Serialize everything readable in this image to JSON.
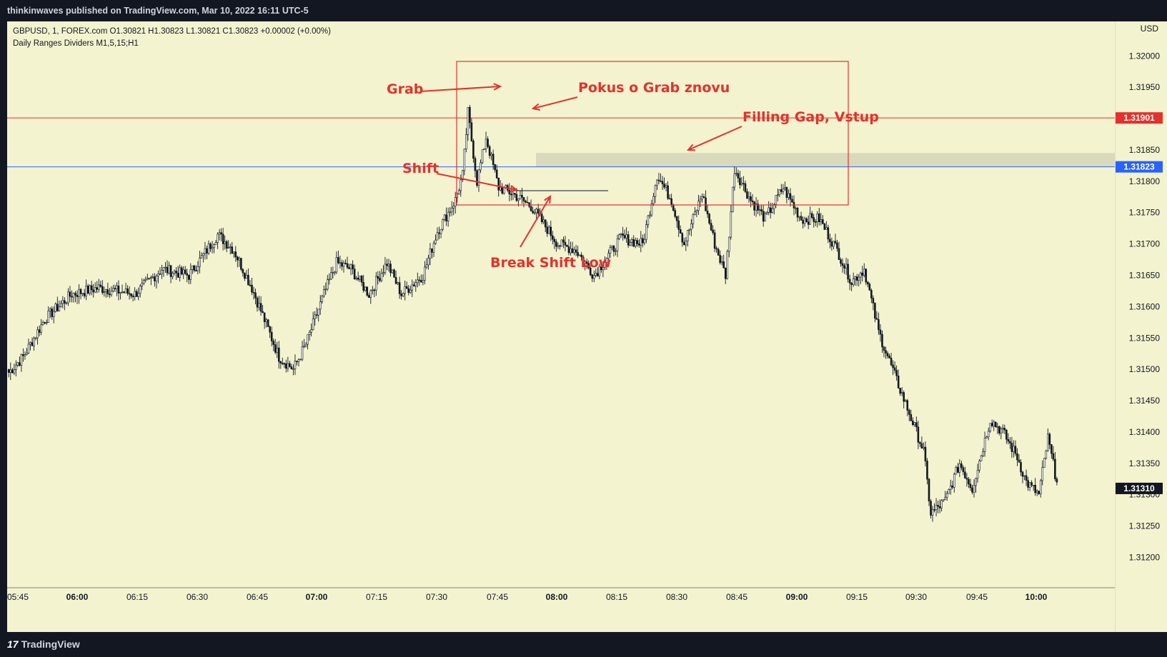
{
  "header": {
    "publish_line": "thinkinwaves published on TradingView.com, Mar 10, 2022 16:11 UTC-5"
  },
  "legend": {
    "symbol_line": "GBPUSD, 1, FOREX.com  O1.30821  H1.30823  L1.30821  C1.30823  +0.00002 (+0.00%)",
    "indicator_line": "Daily Ranges Dividers M1,5,15;H1"
  },
  "footer": {
    "logo_mark": "17",
    "logo_text": "TradingView"
  },
  "colors": {
    "background": "#f3f3cf",
    "bull_candle": "#ffffff",
    "bear_candle": "#131722",
    "annotation": "#e5312b",
    "blue_line": "#2962ff",
    "gap_zone": "#d6d6b8"
  },
  "chart_data": {
    "type": "candlestick",
    "symbol": "GBPUSD",
    "timeframe": "1",
    "currency": "USD",
    "ylim": [
      1.31155,
      1.32055
    ],
    "y_ticks": [
      "1.31200",
      "1.31250",
      "1.31300",
      "1.31350",
      "1.31400",
      "1.31450",
      "1.31500",
      "1.31550",
      "1.31600",
      "1.31650",
      "1.31700",
      "1.31750",
      "1.31800",
      "1.31850",
      "1.31900",
      "1.31950",
      "1.32000"
    ],
    "x_ticks": [
      {
        "label": "05:45",
        "bold": false
      },
      {
        "label": "06:00",
        "bold": true
      },
      {
        "label": "06:15",
        "bold": false
      },
      {
        "label": "06:30",
        "bold": false
      },
      {
        "label": "06:45",
        "bold": false
      },
      {
        "label": "07:00",
        "bold": true
      },
      {
        "label": "07:15",
        "bold": false
      },
      {
        "label": "07:30",
        "bold": false
      },
      {
        "label": "07:45",
        "bold": false
      },
      {
        "label": "08:00",
        "bold": true
      },
      {
        "label": "08:15",
        "bold": false
      },
      {
        "label": "08:30",
        "bold": false
      },
      {
        "label": "08:45",
        "bold": false
      },
      {
        "label": "09:00",
        "bold": true
      },
      {
        "label": "09:15",
        "bold": false
      },
      {
        "label": "09:30",
        "bold": false
      },
      {
        "label": "09:45",
        "bold": false
      },
      {
        "label": "10:00",
        "bold": true
      }
    ],
    "horizontal_lines": [
      {
        "price": 1.31901,
        "label": "1.31901",
        "color": "#e5312b"
      },
      {
        "price": 1.31823,
        "label": "1.31823",
        "color": "#2962ff"
      }
    ],
    "last_price": {
      "price": 1.3131,
      "label": "1.31310"
    },
    "gap_zone": {
      "top": 1.31845,
      "bottom": 1.31823
    },
    "anchor_closes": [
      [
        0,
        1.31495
      ],
      [
        8,
        1.3152
      ],
      [
        20,
        1.3158
      ],
      [
        35,
        1.3162
      ],
      [
        50,
        1.3163
      ],
      [
        70,
        1.3162
      ],
      [
        85,
        1.3166
      ],
      [
        100,
        1.3165
      ],
      [
        110,
        1.3169
      ],
      [
        116,
        1.31715
      ],
      [
        125,
        1.3169
      ],
      [
        135,
        1.3163
      ],
      [
        150,
        1.3152
      ],
      [
        158,
        1.315
      ],
      [
        165,
        1.3154
      ],
      [
        175,
        1.3162
      ],
      [
        182,
        1.3167
      ],
      [
        190,
        1.3166
      ],
      [
        200,
        1.3162
      ],
      [
        210,
        1.3167
      ],
      [
        218,
        1.3162
      ],
      [
        230,
        1.3165
      ],
      [
        238,
        1.3172
      ],
      [
        248,
        1.3177
      ],
      [
        252,
        1.3181
      ],
      [
        255,
        1.3191
      ],
      [
        260,
        1.318
      ],
      [
        265,
        1.3187
      ],
      [
        272,
        1.3179
      ],
      [
        280,
        1.3178
      ],
      [
        290,
        1.3176
      ],
      [
        305,
        1.317
      ],
      [
        315,
        1.3169
      ],
      [
        325,
        1.3165
      ],
      [
        340,
        1.3171
      ],
      [
        352,
        1.317
      ],
      [
        360,
        1.3181
      ],
      [
        368,
        1.3177
      ],
      [
        375,
        1.317
      ],
      [
        385,
        1.3178
      ],
      [
        392,
        1.317
      ],
      [
        398,
        1.3165
      ],
      [
        403,
        1.3182
      ],
      [
        412,
        1.3177
      ],
      [
        420,
        1.3174
      ],
      [
        430,
        1.3179
      ],
      [
        440,
        1.3174
      ],
      [
        450,
        1.3174
      ],
      [
        460,
        1.3169
      ],
      [
        468,
        1.3164
      ],
      [
        475,
        1.3166
      ],
      [
        483,
        1.3156
      ],
      [
        492,
        1.3149
      ],
      [
        500,
        1.3143
      ],
      [
        508,
        1.3137
      ],
      [
        512,
        1.3127
      ],
      [
        520,
        1.3129
      ],
      [
        528,
        1.3135
      ],
      [
        535,
        1.3131
      ],
      [
        545,
        1.3142
      ],
      [
        552,
        1.314
      ],
      [
        560,
        1.3136
      ],
      [
        565,
        1.3132
      ],
      [
        572,
        1.313
      ],
      [
        577,
        1.3139
      ],
      [
        582,
        1.3132
      ]
    ],
    "annotations": [
      {
        "text": "Grab"
      },
      {
        "text": "Pokus o Grab znovu"
      },
      {
        "text": "Filling Gap, Vstup"
      },
      {
        "text": "Shift"
      },
      {
        "text": "Break Shift Low"
      }
    ]
  }
}
